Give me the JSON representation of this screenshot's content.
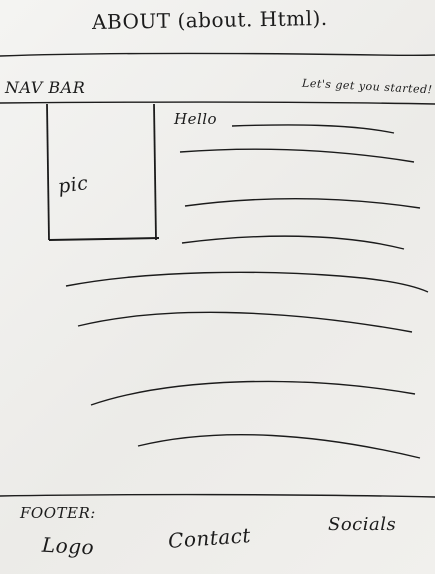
{
  "page": {
    "title": "ABOUT (about. Html)."
  },
  "navbar": {
    "label": "NAV BAR",
    "cta_text": "Let's get you started!"
  },
  "content": {
    "pic_label": "pic",
    "hello_text": "Hello"
  },
  "footer": {
    "label": "FOOTER:",
    "logo_text": "Logo",
    "contact_text": "Contact",
    "socials_text": "Socials"
  }
}
